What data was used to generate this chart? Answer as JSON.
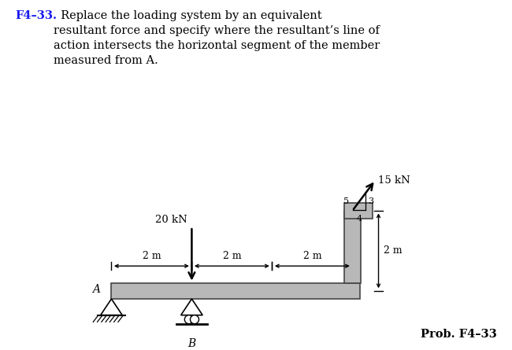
{
  "title_bold": "F4–33.",
  "title_text": "  Replace the loading system by an equivalent\nresultant force and specify where the resultant’s line of\naction intersects the horizontal segment of the member\nmeasured from A.",
  "prob_label": "Prob. F4–33",
  "force_15kN_label": "15 kN",
  "force_20kN_label": "20 kN",
  "dim_2m": "2 m",
  "label_A": "A",
  "label_B": "B",
  "ratio_5": "5",
  "ratio_3": "3",
  "ratio_4": "4",
  "member_color": "#b8b8b8",
  "member_edge_color": "#444444",
  "background_color": "#ffffff",
  "fig_width": 6.5,
  "fig_height": 4.45,
  "title_bold_color": "#1a1aee",
  "title_fontsize": 10.5,
  "prob_fontsize": 10.5
}
